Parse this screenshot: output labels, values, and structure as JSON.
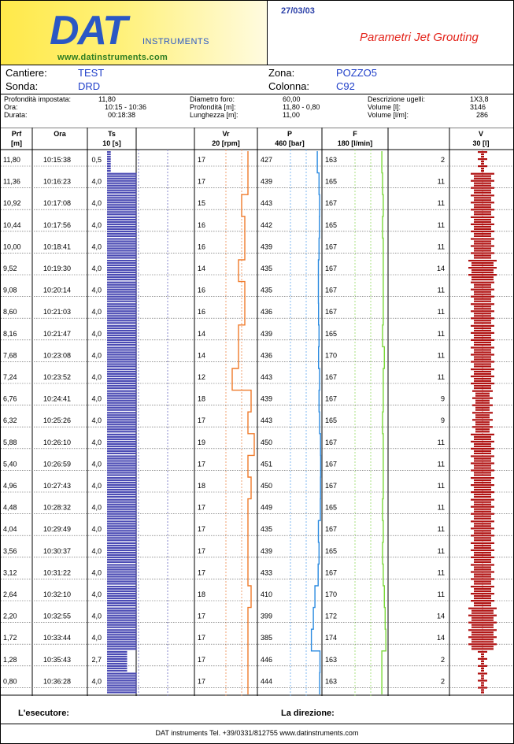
{
  "header": {
    "logo_text": "DAT",
    "logo_sub": "INSTRUMENTS",
    "logo_url": "www.datinstruments.com",
    "date": "27/03/03",
    "title": "Parametri Jet Grouting"
  },
  "info": {
    "cantiere_label": "Cantiere:",
    "cantiere_value": "TEST",
    "sonda_label": "Sonda:",
    "sonda_value": "DRD",
    "zona_label": "Zona:",
    "zona_value": "POZZO5",
    "colonna_label": "Colonna:",
    "colonna_value": "C92"
  },
  "params": {
    "prof_label": "Profondità impostata:",
    "prof_value": "11,80",
    "ora_label": "Ora:",
    "ora_value": "10:15 - 10:36",
    "durata_label": "Durata:",
    "durata_value": "00:18:38",
    "diam_label": "Diametro foro:",
    "diam_value": "60,00",
    "profm_label": "Profondità [m]:",
    "profm_value": "11,80 - 0,80",
    "lung_label": "Lunghezza [m]:",
    "lung_value": "11,00",
    "ugelli_label": "Descrizione ugelli:",
    "ugelli_value": "1X3,8",
    "vol_label": "Volume [l]:",
    "vol_value": "3146",
    "volm_label": "Volume [l/m]:",
    "volm_value": "286"
  },
  "columns": {
    "prf": "Prf",
    "prf_unit": "[m]",
    "ora": "Ora",
    "ts": "Ts",
    "ts_unit": "10 [s]",
    "vr": "Vr",
    "vr_unit": "20 [rpm]",
    "p": "P",
    "p_unit": "460 [bar]",
    "f": "F",
    "f_unit": "180 [l/min]",
    "v": "V",
    "v_unit": "30 [l]"
  },
  "colors": {
    "ts": "#4b4bb4",
    "vr": "#f07a2a",
    "p": "#2a8ae0",
    "f": "#7bd83a",
    "v": "#b01212",
    "grid": "#9a9a9a"
  },
  "chart_data": {
    "type": "table",
    "columns": [
      "Prf [m]",
      "Ora",
      "Ts",
      "Vr",
      "P",
      "F",
      "V"
    ],
    "rows": [
      [
        "11,80",
        "10:15:38",
        "0,5",
        "17",
        "427",
        "163",
        "2"
      ],
      [
        "11,36",
        "10:16:23",
        "4,0",
        "17",
        "439",
        "165",
        "11"
      ],
      [
        "10,92",
        "10:17:08",
        "4,0",
        "15",
        "443",
        "167",
        "11"
      ],
      [
        "10,44",
        "10:17:56",
        "4,0",
        "16",
        "442",
        "165",
        "11"
      ],
      [
        "10,00",
        "10:18:41",
        "4,0",
        "16",
        "439",
        "167",
        "11"
      ],
      [
        "9,52",
        "10:19:30",
        "4,0",
        "14",
        "435",
        "167",
        "14"
      ],
      [
        "9,08",
        "10:20:14",
        "4,0",
        "16",
        "435",
        "167",
        "11"
      ],
      [
        "8,60",
        "10:21:03",
        "4,0",
        "16",
        "436",
        "167",
        "11"
      ],
      [
        "8,16",
        "10:21:47",
        "4,0",
        "14",
        "439",
        "165",
        "11"
      ],
      [
        "7,68",
        "10:23:08",
        "4,0",
        "14",
        "436",
        "170",
        "11"
      ],
      [
        "7,24",
        "10:23:52",
        "4,0",
        "12",
        "443",
        "167",
        "11"
      ],
      [
        "6,76",
        "10:24:41",
        "4,0",
        "18",
        "439",
        "167",
        "9"
      ],
      [
        "6,32",
        "10:25:26",
        "4,0",
        "17",
        "443",
        "165",
        "9"
      ],
      [
        "5,88",
        "10:26:10",
        "4,0",
        "19",
        "450",
        "167",
        "11"
      ],
      [
        "5,40",
        "10:26:59",
        "4,0",
        "17",
        "451",
        "167",
        "11"
      ],
      [
        "4,96",
        "10:27:43",
        "4,0",
        "18",
        "450",
        "167",
        "11"
      ],
      [
        "4,48",
        "10:28:32",
        "4,0",
        "17",
        "449",
        "165",
        "11"
      ],
      [
        "4,04",
        "10:29:49",
        "4,0",
        "17",
        "435",
        "167",
        "11"
      ],
      [
        "3,56",
        "10:30:37",
        "4,0",
        "17",
        "439",
        "165",
        "11"
      ],
      [
        "3,12",
        "10:31:22",
        "4,0",
        "17",
        "433",
        "167",
        "11"
      ],
      [
        "2,64",
        "10:32:10",
        "4,0",
        "18",
        "410",
        "170",
        "11"
      ],
      [
        "2,20",
        "10:32:55",
        "4,0",
        "17",
        "399",
        "172",
        "14"
      ],
      [
        "1,72",
        "10:33:44",
        "4,0",
        "17",
        "385",
        "174",
        "14"
      ],
      [
        "1,28",
        "10:35:43",
        "2,7",
        "17",
        "446",
        "163",
        "2"
      ],
      [
        "0,80",
        "10:36:28",
        "4,0",
        "17",
        "444",
        "163",
        "2"
      ]
    ],
    "scales": {
      "ts_max": 10,
      "vr_max": 20,
      "p_max": 460,
      "f_max": 180,
      "v_max": 30
    }
  },
  "footer": {
    "esecutore": "L'esecutore:",
    "direzione": "La direzione:",
    "contact": "DAT instruments  Tel. +39/0331/812755  www.datinstruments.com"
  }
}
